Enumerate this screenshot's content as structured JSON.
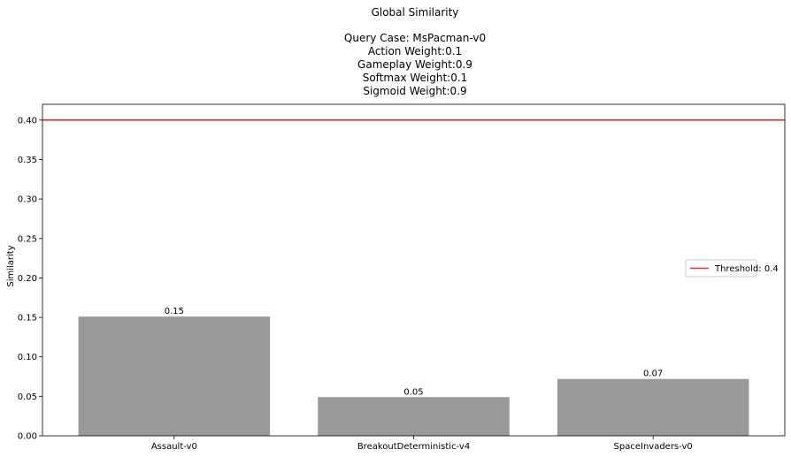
{
  "chart_data": {
    "type": "bar",
    "title": "Global Similarity",
    "subtitle_lines": [
      "Query Case: MsPacman-v0",
      "Action Weight:0.1",
      "Gameplay Weight:0.9",
      "Softmax Weight:0.1",
      "Sigmoid Weight:0.9"
    ],
    "categories": [
      "Assault-v0",
      "BreakoutDeterministic-v4",
      "SpaceInvaders-v0"
    ],
    "values": [
      0.151,
      0.049,
      0.072
    ],
    "data_labels": [
      "0.15",
      "0.05",
      "0.07"
    ],
    "xlabel": "",
    "ylabel": "Similarity",
    "ylim": [
      0,
      0.42
    ],
    "yticks": [
      "0.00",
      "0.05",
      "0.10",
      "0.15",
      "0.20",
      "0.25",
      "0.30",
      "0.35",
      "0.40"
    ],
    "ytick_values": [
      0,
      0.05,
      0.1,
      0.15,
      0.2,
      0.25,
      0.3,
      0.35,
      0.4
    ],
    "grid": false,
    "bar_color": "#999999",
    "threshold": {
      "value": 0.4,
      "label": "Threshold: 0.4",
      "color": "#e8312a"
    },
    "legend": {
      "placement": "center-right",
      "entries": [
        "Threshold: 0.4"
      ]
    }
  }
}
